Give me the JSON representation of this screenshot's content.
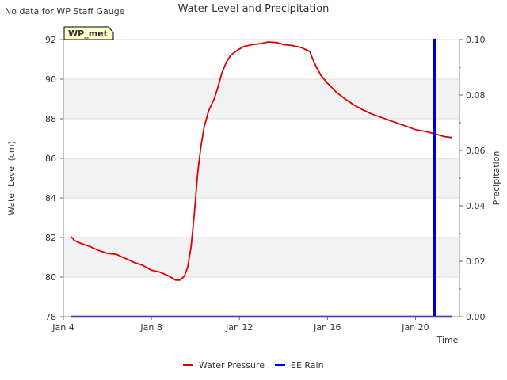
{
  "chart_data": {
    "type": "line",
    "title": "Water Level and Precipitation",
    "note": "No data for WP Staff Gauge",
    "station_badge": "WP_met",
    "xlabel": "Time",
    "ylabel_left": "Water Level (cm)",
    "ylabel_right": "Precipitation",
    "x_ticks": [
      {
        "label": "Jan 4",
        "day": 4
      },
      {
        "label": "Jan 8",
        "day": 8
      },
      {
        "label": "Jan 12",
        "day": 12
      },
      {
        "label": "Jan 16",
        "day": 16
      },
      {
        "label": "Jan 20",
        "day": 20
      }
    ],
    "xlim": [
      4,
      22
    ],
    "ylim_left": [
      78,
      92
    ],
    "yticks_left": [
      "78",
      "80",
      "82",
      "84",
      "86",
      "88",
      "90",
      "92"
    ],
    "ylim_right": [
      0,
      0.1
    ],
    "yticks_right": [
      "0.00",
      "0.02",
      "0.04",
      "0.06",
      "0.08",
      "0.10"
    ],
    "grid": true,
    "legend_position": "bottom-center",
    "series": [
      {
        "name": "Water Pressure",
        "axis": "left",
        "color": "#dd0000",
        "points": [
          [
            4.35,
            82.05
          ],
          [
            4.5,
            81.85
          ],
          [
            4.8,
            81.7
          ],
          [
            5.2,
            81.55
          ],
          [
            5.6,
            81.35
          ],
          [
            6.0,
            81.2
          ],
          [
            6.4,
            81.15
          ],
          [
            6.8,
            80.95
          ],
          [
            7.2,
            80.75
          ],
          [
            7.6,
            80.6
          ],
          [
            8.0,
            80.35
          ],
          [
            8.4,
            80.25
          ],
          [
            8.8,
            80.05
          ],
          [
            9.1,
            79.85
          ],
          [
            9.3,
            79.85
          ],
          [
            9.5,
            80.05
          ],
          [
            9.65,
            80.5
          ],
          [
            9.8,
            81.5
          ],
          [
            9.95,
            83.2
          ],
          [
            10.1,
            85.2
          ],
          [
            10.25,
            86.6
          ],
          [
            10.4,
            87.6
          ],
          [
            10.6,
            88.4
          ],
          [
            10.85,
            89.0
          ],
          [
            11.0,
            89.5
          ],
          [
            11.2,
            90.3
          ],
          [
            11.4,
            90.85
          ],
          [
            11.6,
            91.2
          ],
          [
            11.9,
            91.45
          ],
          [
            12.2,
            91.65
          ],
          [
            12.6,
            91.75
          ],
          [
            13.0,
            91.8
          ],
          [
            13.3,
            91.88
          ],
          [
            13.7,
            91.85
          ],
          [
            14.0,
            91.75
          ],
          [
            14.4,
            91.7
          ],
          [
            14.8,
            91.6
          ],
          [
            15.0,
            91.5
          ],
          [
            15.2,
            91.4
          ],
          [
            15.3,
            91.1
          ],
          [
            15.5,
            90.6
          ],
          [
            15.7,
            90.2
          ],
          [
            16.0,
            89.8
          ],
          [
            16.4,
            89.35
          ],
          [
            16.8,
            89.0
          ],
          [
            17.2,
            88.7
          ],
          [
            17.6,
            88.45
          ],
          [
            18.0,
            88.25
          ],
          [
            18.5,
            88.05
          ],
          [
            19.0,
            87.85
          ],
          [
            19.5,
            87.65
          ],
          [
            20.0,
            87.45
          ],
          [
            20.5,
            87.35
          ],
          [
            21.0,
            87.2
          ],
          [
            21.3,
            87.1
          ],
          [
            21.65,
            87.05
          ]
        ]
      },
      {
        "name": "EE Rain",
        "axis": "right",
        "color": "#0000cc",
        "points": [
          [
            4.35,
            0
          ],
          [
            20.85,
            0
          ],
          [
            20.85,
            0.1
          ],
          [
            20.9,
            0.1
          ],
          [
            20.9,
            0
          ],
          [
            21.65,
            0
          ]
        ]
      }
    ]
  }
}
